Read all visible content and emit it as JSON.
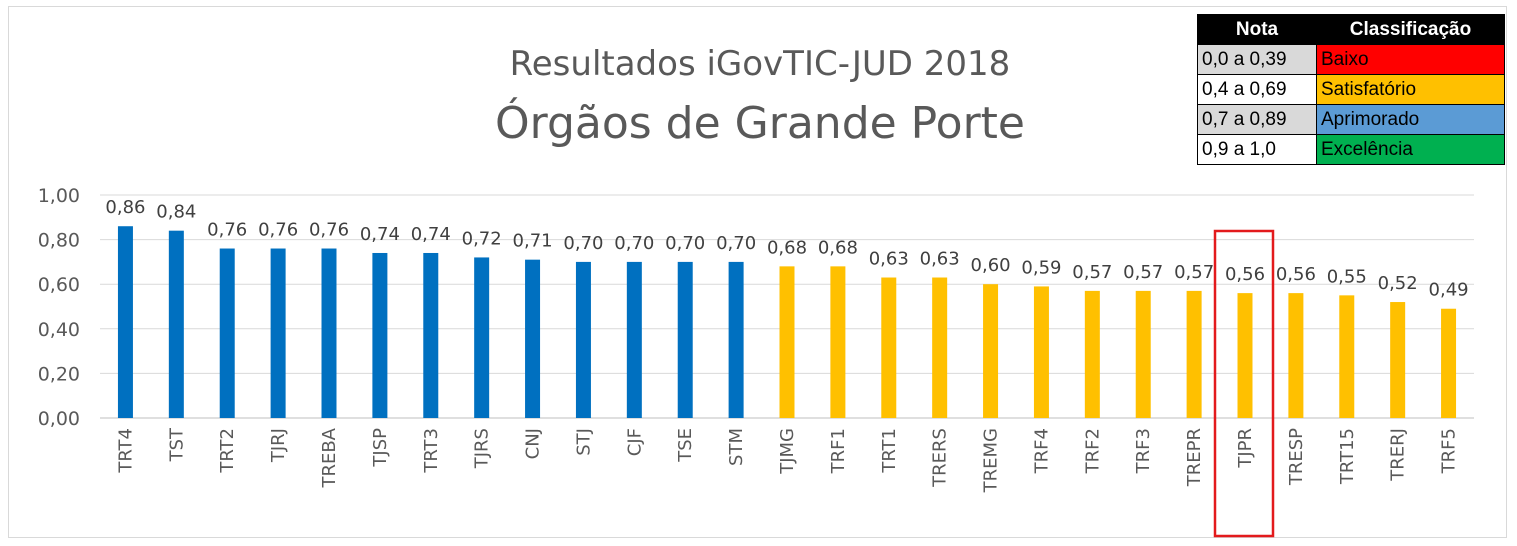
{
  "chart_data": {
    "type": "bar",
    "title": "Resultados iGovTIC-JUD 2018",
    "subtitle": "Órgãos de Grande Porte",
    "ylim": [
      0,
      1
    ],
    "yticks": [
      "0,00",
      "0,20",
      "0,40",
      "0,60",
      "0,80",
      "1,00"
    ],
    "grid": true,
    "categories": [
      "TRT4",
      "TST",
      "TRT2",
      "TJRJ",
      "TREBA",
      "TJSP",
      "TRT3",
      "TJRS",
      "CNJ",
      "STJ",
      "CJF",
      "TSE",
      "STM",
      "TJMG",
      "TRF1",
      "TRT1",
      "TRERS",
      "TREMG",
      "TRF4",
      "TRF2",
      "TRF3",
      "TREPR",
      "TJPR",
      "TRESP",
      "TRT15",
      "TRERJ",
      "TRF5"
    ],
    "values": [
      0.86,
      0.84,
      0.76,
      0.76,
      0.76,
      0.74,
      0.74,
      0.72,
      0.71,
      0.7,
      0.7,
      0.7,
      0.7,
      0.68,
      0.68,
      0.63,
      0.63,
      0.6,
      0.59,
      0.57,
      0.57,
      0.57,
      0.56,
      0.56,
      0.55,
      0.52,
      0.49
    ],
    "value_labels": [
      "0,86",
      "0,84",
      "0,76",
      "0,76",
      "0,76",
      "0,74",
      "0,74",
      "0,72",
      "0,71",
      "0,70",
      "0,70",
      "0,70",
      "0,70",
      "0,68",
      "0,68",
      "0,63",
      "0,63",
      "0,60",
      "0,59",
      "0,57",
      "0,57",
      "0,57",
      "0,56",
      "0,56",
      "0,55",
      "0,52",
      "0,49"
    ],
    "bar_colors": {
      "Aprimorado": "#0070c0",
      "Satisfatório": "#ffc000"
    },
    "highlighted_category": "TJPR",
    "highlight_color": "#e31a1c"
  },
  "legend": {
    "header_nota": "Nota",
    "header_classificacao": "Classificação",
    "rows": [
      {
        "range": "0,0 a 0,39",
        "label": "Baixo",
        "color": "#ff0000"
      },
      {
        "range": "0,4 a 0,69",
        "label": "Satisfatório",
        "color": "#ffc000"
      },
      {
        "range": "0,7 a 0,89",
        "label": "Aprimorado",
        "color": "#5b9bd5"
      },
      {
        "range": "0,9 a 1,0",
        "label": "Excelência",
        "color": "#00b050"
      }
    ]
  }
}
